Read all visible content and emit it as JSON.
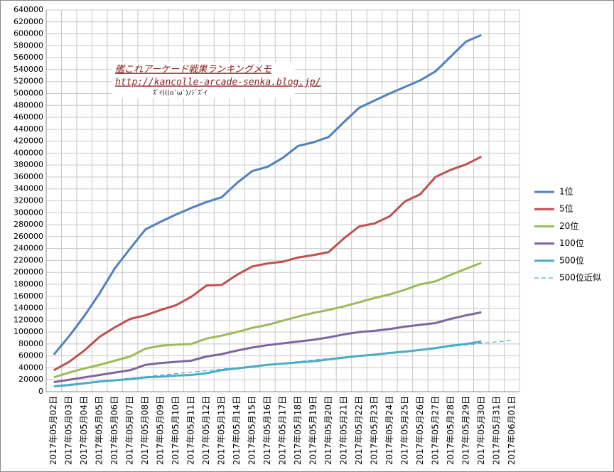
{
  "chart_data": {
    "type": "line",
    "categories": [
      "2017年05月02日",
      "2017年05月03日",
      "2017年05月04日",
      "2017年05月05日",
      "2017年05月06日",
      "2017年05月07日",
      "2017年05月08日",
      "2017年05月09日",
      "2017年05月10日",
      "2017年05月11日",
      "2017年05月12日",
      "2017年05月13日",
      "2017年05月14日",
      "2017年05月15日",
      "2017年05月16日",
      "2017年05月17日",
      "2017年05月18日",
      "2017年05月19日",
      "2017年05月20日",
      "2017年05月21日",
      "2017年05月22日",
      "2017年05月23日",
      "2017年05月24日",
      "2017年05月25日",
      "2017年05月26日",
      "2017年05月27日",
      "2017年05月28日",
      "2017年05月29日",
      "2017年05月30日",
      "2017年05月31日",
      "2017年06月01日"
    ],
    "series": [
      {
        "name": "1位",
        "color": "#4f81bd",
        "values": [
          62000,
          93000,
          127000,
          165000,
          207000,
          240000,
          272000,
          285000,
          297000,
          308000,
          318000,
          326000,
          350000,
          370000,
          377000,
          392000,
          412000,
          418000,
          427000,
          452000,
          476000,
          488000,
          500000,
          511000,
          522000,
          537000,
          562000,
          587000,
          598000,
          null,
          null
        ]
      },
      {
        "name": "5位",
        "color": "#c0504d",
        "values": [
          36000,
          50000,
          69000,
          92000,
          108000,
          122000,
          128000,
          137000,
          145000,
          159000,
          178000,
          179000,
          196000,
          210000,
          215000,
          218000,
          225000,
          229000,
          234000,
          257000,
          277000,
          282000,
          294000,
          319000,
          331000,
          360000,
          372000,
          381000,
          394000,
          null,
          null
        ]
      },
      {
        "name": "20位",
        "color": "#9bbb59",
        "values": [
          24000,
          32000,
          39000,
          45000,
          52000,
          59000,
          72000,
          77000,
          79000,
          80000,
          89000,
          94000,
          100000,
          107000,
          112000,
          119000,
          126000,
          132000,
          137000,
          143000,
          150000,
          157000,
          163000,
          171000,
          180000,
          185000,
          196000,
          206000,
          216000,
          null,
          null
        ]
      },
      {
        "name": "100位",
        "color": "#8064a2",
        "values": [
          16000,
          20000,
          24000,
          28000,
          32000,
          36000,
          45000,
          48000,
          50000,
          52000,
          59000,
          63000,
          69000,
          74000,
          78000,
          81000,
          84000,
          87000,
          91000,
          96000,
          100000,
          102000,
          105000,
          109000,
          112000,
          115000,
          122000,
          128000,
          133000,
          null,
          null
        ]
      },
      {
        "name": "500位",
        "color": "#4bacc6",
        "values": [
          9000,
          11000,
          14000,
          17000,
          19000,
          21000,
          24000,
          25000,
          27000,
          28000,
          31000,
          36000,
          39000,
          42000,
          45000,
          47000,
          49000,
          51000,
          54000,
          57000,
          60000,
          62000,
          65000,
          67000,
          70000,
          73000,
          77000,
          80000,
          84000,
          null,
          null
        ]
      },
      {
        "name": "500位近似",
        "color": "#4bacc6",
        "dashed": true,
        "values": [
          10000,
          12500,
          15100,
          17600,
          20100,
          22700,
          25200,
          27700,
          30300,
          32800,
          35300,
          37900,
          40400,
          42900,
          45500,
          48000,
          50500,
          53100,
          55600,
          58100,
          60700,
          63200,
          65700,
          68300,
          70800,
          73300,
          75900,
          78400,
          80900,
          83500,
          86000
        ]
      }
    ],
    "ylim": [
      0,
      640000
    ],
    "yticks": [
      0,
      20000,
      40000,
      60000,
      80000,
      100000,
      120000,
      140000,
      160000,
      180000,
      200000,
      220000,
      240000,
      260000,
      280000,
      300000,
      320000,
      340000,
      360000,
      380000,
      400000,
      420000,
      440000,
      460000,
      480000,
      500000,
      520000,
      540000,
      560000,
      580000,
      600000,
      620000,
      640000
    ],
    "grid": true,
    "legend": "right",
    "annotations": [
      "艦これアーケード戦果ランキングメモ",
      "http://kancolle-arcade-senka.blog.jp/",
      "ｽﾞｲ(((o´ω`)ﾉｼﾞｽﾞｲ"
    ]
  }
}
